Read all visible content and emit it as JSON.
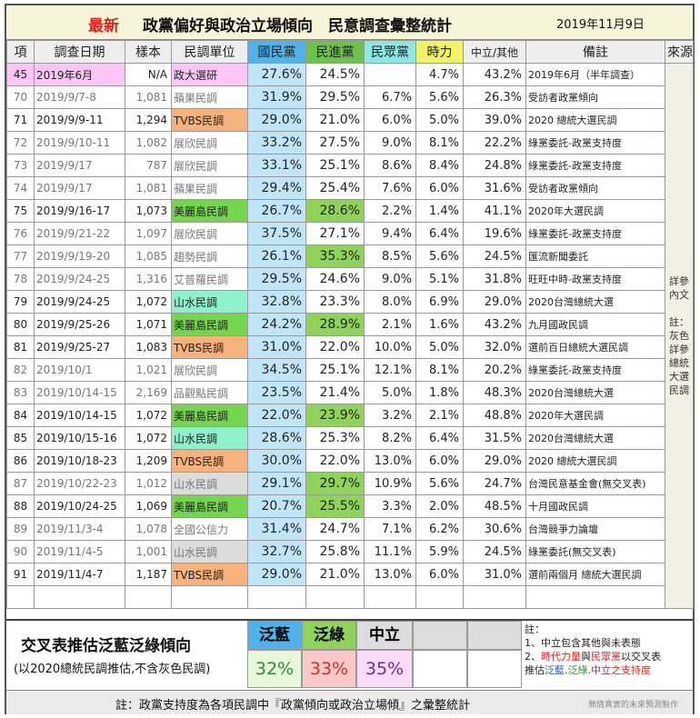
{
  "title": {
    "latest": "最新",
    "main": "政黨偏好與政治立場傾向　民意調查彙整統計",
    "date": "2019年11月9日"
  },
  "headers": [
    "項",
    "調查日期",
    "樣本",
    "民調單位",
    "國民黨",
    "民進黨",
    "民眾黨",
    "時力",
    "中立/其他",
    "備註",
    "來源"
  ],
  "rows": [
    {
      "id": "45",
      "date": "2019年6月",
      "sample": "N/A",
      "org": "政大選研",
      "kmt": "27.6%",
      "dpp": "24.5%",
      "tpp": "",
      "npp": "4.7%",
      "neutral": "43.2%",
      "note": "2019年6月（半年調查）",
      "gray": false
    },
    {
      "id": "70",
      "date": "2019/9/7-8",
      "sample": "1,081",
      "org": "蘋果民調",
      "kmt": "31.9%",
      "dpp": "29.5%",
      "tpp": "6.7%",
      "npp": "5.6%",
      "neutral": "26.3%",
      "note": "受訪者政黨傾向",
      "gray": true
    },
    {
      "id": "71",
      "date": "2019/9/9-11",
      "sample": "1,294",
      "org": "TVBS民調",
      "kmt": "29.0%",
      "dpp": "21.0%",
      "tpp": "6.0%",
      "npp": "5.0%",
      "neutral": "39.0%",
      "note": "2020 總統大選民調",
      "gray": false
    },
    {
      "id": "72",
      "date": "2019/9/10-11",
      "sample": "1,082",
      "org": "展欣民調",
      "kmt": "33.2%",
      "dpp": "27.5%",
      "tpp": "9.0%",
      "npp": "8.1%",
      "neutral": "22.2%",
      "note": "綠黨委託-政黨支持度",
      "gray": true
    },
    {
      "id": "73",
      "date": "2019/9/17",
      "sample": "787",
      "org": "展欣民調",
      "kmt": "33.1%",
      "dpp": "25.1%",
      "tpp": "8.6%",
      "npp": "8.4%",
      "neutral": "24.8%",
      "note": "綠黨委託-政黨支持度",
      "gray": true
    },
    {
      "id": "74",
      "date": "2019/9/17",
      "sample": "1,081",
      "org": "蘋果民調",
      "kmt": "29.4%",
      "dpp": "25.4%",
      "tpp": "7.6%",
      "npp": "6.0%",
      "neutral": "31.6%",
      "note": "受訪者政黨傾向",
      "gray": true
    },
    {
      "id": "75",
      "date": "2019/9/16-17",
      "sample": "1,073",
      "org": "美麗島民調",
      "kmt": "26.7%",
      "dpp": "28.6%",
      "tpp": "2.2%",
      "npp": "1.4%",
      "neutral": "41.1%",
      "note": "2020年大選民調",
      "gray": false
    },
    {
      "id": "76",
      "date": "2019/9/21-22",
      "sample": "1,097",
      "org": "展欣民調",
      "kmt": "37.5%",
      "dpp": "27.1%",
      "tpp": "9.4%",
      "npp": "6.4%",
      "neutral": "19.6%",
      "note": "綠黨委託-政黨支持度",
      "gray": true
    },
    {
      "id": "77",
      "date": "2019/9/19-20",
      "sample": "1,085",
      "org": "趨勢民調",
      "kmt": "26.1%",
      "dpp": "35.3%",
      "tpp": "8.5%",
      "npp": "5.6%",
      "neutral": "24.5%",
      "note": "匯流新聞委託",
      "gray": true
    },
    {
      "id": "78",
      "date": "2019/9/24-25",
      "sample": "1,316",
      "org": "艾普羅民調",
      "kmt": "29.5%",
      "dpp": "24.6%",
      "tpp": "9.0%",
      "npp": "5.1%",
      "neutral": "31.8%",
      "note": "旺旺中時-政黨支持度",
      "gray": true
    },
    {
      "id": "79",
      "date": "2019/9/24-25",
      "sample": "1,072",
      "org": "山水民調",
      "kmt": "32.8%",
      "dpp": "23.3%",
      "tpp": "8.0%",
      "npp": "6.9%",
      "neutral": "29.0%",
      "note": "2020台灣總統大選",
      "gray": false
    },
    {
      "id": "80",
      "date": "2019/9/25-26",
      "sample": "1,071",
      "org": "美麗島民調",
      "kmt": "24.2%",
      "dpp": "28.9%",
      "tpp": "2.1%",
      "npp": "1.6%",
      "neutral": "43.2%",
      "note": "九月國政民調",
      "gray": false
    },
    {
      "id": "81",
      "date": "2019/9/25-27",
      "sample": "1,083",
      "org": "TVBS民調",
      "kmt": "31.0%",
      "dpp": "22.0%",
      "tpp": "10.0%",
      "npp": "5.0%",
      "neutral": "32.0%",
      "note": "選前百日總統大選民調",
      "gray": false
    },
    {
      "id": "82",
      "date": "2019/10/1",
      "sample": "1,021",
      "org": "展欣民調",
      "kmt": "34.5%",
      "dpp": "25.1%",
      "tpp": "12.1%",
      "npp": "8.1%",
      "neutral": "20.2%",
      "note": "綠黨委託-政黨支持度",
      "gray": true
    },
    {
      "id": "83",
      "date": "2019/10/14-15",
      "sample": "2,169",
      "org": "品觀點民調",
      "kmt": "23.5%",
      "dpp": "21.4%",
      "tpp": "5.0%",
      "npp": "1.8%",
      "neutral": "48.3%",
      "note": "2020台灣總統大選",
      "gray": true
    },
    {
      "id": "84",
      "date": "2019/10/14-15",
      "sample": "1,072",
      "org": "美麗島民調",
      "kmt": "22.0%",
      "dpp": "23.9%",
      "tpp": "3.2%",
      "npp": "2.1%",
      "neutral": "48.8%",
      "note": "2020年大選民調",
      "gray": false
    },
    {
      "id": "85",
      "date": "2019/10/15-16",
      "sample": "1,072",
      "org": "山水民調",
      "kmt": "28.6%",
      "dpp": "25.3%",
      "tpp": "8.2%",
      "npp": "6.4%",
      "neutral": "31.5%",
      "note": "2020台灣總統大選",
      "gray": false
    },
    {
      "id": "86",
      "date": "2019/10/18-23",
      "sample": "1,209",
      "org": "TVBS民調",
      "kmt": "30.0%",
      "dpp": "22.0%",
      "tpp": "13.0%",
      "npp": "6.0%",
      "neutral": "29.0%",
      "note": "2020 總統大選民調",
      "gray": false
    },
    {
      "id": "87",
      "date": "2019/10/22-23",
      "sample": "1,012",
      "org": "山水民調",
      "kmt": "29.1%",
      "dpp": "29.7%",
      "tpp": "10.9%",
      "npp": "5.6%",
      "neutral": "24.7%",
      "note": "台灣民意基金會(無交叉表)",
      "gray": true
    },
    {
      "id": "88",
      "date": "2019/10/24-25",
      "sample": "1,069",
      "org": "美麗島民調",
      "kmt": "20.7%",
      "dpp": "25.5%",
      "tpp": "3.3%",
      "npp": "2.0%",
      "neutral": "48.5%",
      "note": "十月國政民調",
      "gray": false
    },
    {
      "id": "89",
      "date": "2019/11/3-4",
      "sample": "1,078",
      "org": "全國公信力",
      "kmt": "31.4%",
      "dpp": "24.7%",
      "tpp": "7.1%",
      "npp": "6.2%",
      "neutral": "30.6%",
      "note": "台灣競爭力論壇",
      "gray": true
    },
    {
      "id": "90",
      "date": "2019/11/4-5",
      "sample": "1,001",
      "org": "山水民調",
      "kmt": "32.7%",
      "dpp": "25.8%",
      "tpp": "11.1%",
      "npp": "5.9%",
      "neutral": "24.5%",
      "note": "綠黨委託(無交叉表)",
      "gray": true
    },
    {
      "id": "91",
      "date": "2019/11/4-7",
      "sample": "1,187",
      "org": "TVBS民調",
      "kmt": "29.0%",
      "dpp": "21.0%",
      "tpp": "13.0%",
      "npp": "6.0%",
      "neutral": "31.0%",
      "note": "選前兩個月 總統大選民調",
      "gray": false
    }
  ],
  "source_note": "詳參內文\n\n註：灰色詳參總統大選民調",
  "cross": {
    "title": "交叉表推估泛藍泛綠傾向",
    "subtitle": "(以2020總統民調推估,不含灰色民調)",
    "blue_label": "泛藍",
    "green_label": "泛綠",
    "neutral_label": "中立",
    "blue_value": "32%",
    "green_value": "33%",
    "neutral_value": "35%"
  },
  "notes": {
    "line1": "註：",
    "line2": "1、中立包含其他與未表態",
    "line3_prefix": "2、",
    "line3_a": "時代力量",
    "line3_b": "與",
    "line3_c": "民眾黨",
    "line3_d": "以交叉表",
    "line4_a": "推估",
    "line4_b": "泛藍",
    "line4_c": ".",
    "line4_d": "泛綠",
    "line4_e": ".",
    "line4_f": "中立",
    "line4_g": "之支持度"
  },
  "footer": {
    "text": "註：政黨支持度為各項民調中『政黨傾向或政治立場傾』之彙整統計",
    "credit": "無情真實的未來預測製作"
  },
  "colors": {
    "kmt_header": "#4fb3ea",
    "dpp_header": "#6cc24a",
    "tpp_header": "#8ce8e4",
    "npp_header": "#f2f266",
    "kmt_cell": "#bfe5f7",
    "dpp_winner": "#8fd35a",
    "tvbs": "#f6b27a",
    "meilidao": "#74d64c",
    "shanshui": "#8df2cc",
    "special_row": "#fbc6f6",
    "title_red": "#e2231a"
  },
  "dpp_leads": [
    "75",
    "77",
    "80",
    "84",
    "87",
    "88"
  ]
}
